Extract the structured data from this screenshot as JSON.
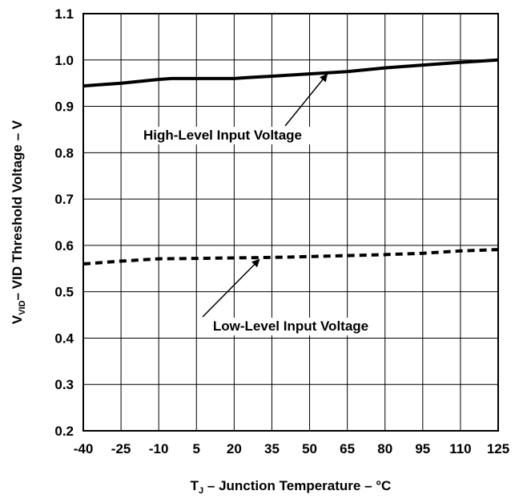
{
  "chart_data": {
    "type": "line",
    "title": "",
    "xlabel": {
      "main": "T",
      "sub": "J",
      "rest": " – Junction Temperature – °C"
    },
    "ylabel": {
      "main": "V",
      "sub": "VID",
      "rest": "– VID Threshold Voltage – V"
    },
    "x_ticks": [
      "-40",
      "-25",
      "-10",
      "5",
      "20",
      "35",
      "50",
      "65",
      "80",
      "95",
      "110",
      "125"
    ],
    "y_ticks": [
      "0.2",
      "0.3",
      "0.4",
      "0.5",
      "0.6",
      "0.7",
      "0.8",
      "0.9",
      "1.0",
      "1.1"
    ],
    "xlim": [
      -40,
      125
    ],
    "ylim": [
      0.2,
      1.1
    ],
    "grid": true,
    "series": [
      {
        "name": "High-Level  Input Voltage",
        "style": "solid",
        "x": [
          -40,
          -25,
          -10,
          -5,
          5,
          20,
          25,
          35,
          50,
          65,
          80,
          95,
          110,
          125
        ],
        "y": [
          0.944,
          0.95,
          0.958,
          0.96,
          0.96,
          0.96,
          0.962,
          0.965,
          0.97,
          0.975,
          0.983,
          0.989,
          0.995,
          1.0
        ]
      },
      {
        "name": "Low-Level  Input Voltage",
        "style": "dashed",
        "x": [
          -40,
          -25,
          -10,
          5,
          20,
          35,
          50,
          65,
          80,
          95,
          110,
          125
        ],
        "y": [
          0.56,
          0.566,
          0.571,
          0.572,
          0.573,
          0.574,
          0.576,
          0.578,
          0.58,
          0.583,
          0.588,
          0.591
        ]
      }
    ],
    "annotations": [
      {
        "text": "High-Level  Input Voltage",
        "arrow_to": [
          57,
          0.973
        ]
      },
      {
        "text": "Low-Level  Input Voltage",
        "arrow_to": [
          30,
          0.573
        ]
      }
    ],
    "colors": {
      "line": "#000000",
      "grid": "#000000",
      "background": "#ffffff"
    }
  }
}
